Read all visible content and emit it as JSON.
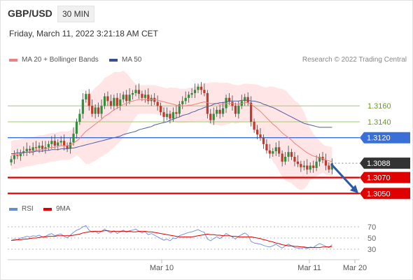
{
  "header": {
    "symbol": "GBP/USD",
    "timeframe": "30 MIN",
    "datetime": "Friday, March 11, 2022 3:21:18 AM CET"
  },
  "legend": {
    "ma20_bb": "MA 20 + Bollinger Bands",
    "ma50": "MA 50",
    "credit": "Research © 2022 Trading Central",
    "rsi": "RSI",
    "ma9": "9MA"
  },
  "colors": {
    "ma20": "#f08080",
    "band": "#ffe0e0",
    "ma50": "#4f5f9f",
    "bull": "#2f8f3a",
    "bear": "#c0392b",
    "green_level": "#9ccf6a",
    "blue_level": "#3a6fd8",
    "red_level": "#e00000",
    "current": "#333333",
    "arrow": "#2d5aa8",
    "rsi": "#6b8bd6",
    "rsi_ma": "#e00000"
  },
  "chart_data": [
    {
      "type": "candlestick",
      "title": "",
      "x_ticks": [
        "Mar 10",
        "Mar 11",
        "Mar 20"
      ],
      "ylim": [
        1.3038,
        1.3205
      ],
      "levels": [
        {
          "label": "1.3160",
          "value": 1.316,
          "kind": "resistance"
        },
        {
          "label": "1.3140",
          "value": 1.314,
          "kind": "resistance"
        },
        {
          "label": "1.3120",
          "value": 1.312,
          "kind": "pivot"
        },
        {
          "label": "1.3088",
          "value": 1.3088,
          "kind": "current"
        },
        {
          "label": "1.3070",
          "value": 1.307,
          "kind": "support"
        },
        {
          "label": "1.3050",
          "value": 1.305,
          "kind": "support"
        }
      ],
      "close": [
        1.3093,
        1.3098,
        1.3097,
        1.3101,
        1.3103,
        1.3106,
        1.3104,
        1.3108,
        1.3107,
        1.311,
        1.3106,
        1.3108,
        1.3112,
        1.3116,
        1.311,
        1.3114,
        1.3116,
        1.311,
        1.3106,
        1.3114,
        1.3125,
        1.314,
        1.315,
        1.3168,
        1.3175,
        1.316,
        1.315,
        1.3158,
        1.315,
        1.316,
        1.3172,
        1.3166,
        1.316,
        1.317,
        1.316,
        1.3168,
        1.3174,
        1.3166,
        1.3174,
        1.3176,
        1.318,
        1.3175,
        1.317,
        1.3174,
        1.3166,
        1.317,
        1.3165,
        1.316,
        1.3152,
        1.3146,
        1.315,
        1.3144,
        1.3152,
        1.315,
        1.3162,
        1.3166,
        1.317,
        1.3174,
        1.3176,
        1.318,
        1.3184,
        1.318,
        1.3176,
        1.315,
        1.3142,
        1.315,
        1.3155,
        1.315,
        1.3157,
        1.317,
        1.3165,
        1.316,
        1.315,
        1.316,
        1.3166,
        1.3171,
        1.3164,
        1.314,
        1.313,
        1.3124,
        1.312,
        1.3112,
        1.3104,
        1.31,
        1.3103,
        1.3108,
        1.31,
        1.309,
        1.3096,
        1.3102,
        1.3096,
        1.309,
        1.3087,
        1.3083,
        1.3085,
        1.308,
        1.3085,
        1.3082,
        1.309,
        1.3096,
        1.3092,
        1.3085,
        1.308,
        1.3088
      ],
      "series": [
        {
          "name": "MA 20",
          "values": [
            1.3098,
            1.3099,
            1.3099,
            1.31,
            1.3101,
            1.3102,
            1.3102,
            1.3103,
            1.3104,
            1.3105,
            1.3105,
            1.3106,
            1.3107,
            1.3108,
            1.3108,
            1.3109,
            1.311,
            1.311,
            1.311,
            1.3111,
            1.3113,
            1.3116,
            1.3119,
            1.3124,
            1.3128,
            1.3131,
            1.3134,
            1.3137,
            1.314,
            1.3143,
            1.3147,
            1.3149,
            1.3152,
            1.3155,
            1.3157,
            1.3159,
            1.3162,
            1.3163,
            1.3165,
            1.3166,
            1.3167,
            1.3168,
            1.3168,
            1.3168,
            1.3168,
            1.3168,
            1.3168,
            1.3167,
            1.3166,
            1.3165,
            1.3164,
            1.3163,
            1.3162,
            1.3161,
            1.316,
            1.316,
            1.316,
            1.3161,
            1.3161,
            1.3162,
            1.3163,
            1.3164,
            1.3165,
            1.3164,
            1.3163,
            1.3163,
            1.3163,
            1.3162,
            1.3162,
            1.3163,
            1.3163,
            1.3163,
            1.3162,
            1.3162,
            1.3163,
            1.3164,
            1.3164,
            1.3162,
            1.3159,
            1.3156,
            1.3153,
            1.3149,
            1.3145,
            1.3141,
            1.3137,
            1.3134,
            1.313,
            1.3126,
            1.3123,
            1.312,
            1.3117,
            1.3113,
            1.311,
            1.3107,
            1.3104,
            1.3101,
            1.3099,
            1.3097,
            1.3096,
            1.3095,
            1.3094,
            1.3092,
            1.3091,
            1.309
          ]
        },
        {
          "name": "MA 50",
          "values": [
            1.31,
            1.31,
            1.3101,
            1.3101,
            1.3101,
            1.3102,
            1.3102,
            1.3102,
            1.3103,
            1.3103,
            1.3103,
            1.3104,
            1.3104,
            1.3105,
            1.3105,
            1.3105,
            1.3106,
            1.3106,
            1.3106,
            1.3107,
            1.3107,
            1.3108,
            1.3109,
            1.311,
            1.3111,
            1.3112,
            1.3113,
            1.3114,
            1.3115,
            1.3116,
            1.3117,
            1.3118,
            1.3119,
            1.312,
            1.3121,
            1.3122,
            1.3124,
            1.3125,
            1.3126,
            1.3127,
            1.3128,
            1.313,
            1.3131,
            1.3132,
            1.3133,
            1.3134,
            1.3136,
            1.3137,
            1.3138,
            1.3139,
            1.314,
            1.3142,
            1.3143,
            1.3145,
            1.3146,
            1.3148,
            1.3149,
            1.315,
            1.3152,
            1.3153,
            1.3155,
            1.3156,
            1.3158,
            1.3159,
            1.316,
            1.3162,
            1.3163,
            1.3164,
            1.3164,
            1.3165,
            1.3166,
            1.3166,
            1.3166,
            1.3166,
            1.3167,
            1.3167,
            1.3167,
            1.3166,
            1.3166,
            1.3165,
            1.3164,
            1.3162,
            1.3161,
            1.3159,
            1.3158,
            1.3156,
            1.3154,
            1.3152,
            1.315,
            1.3148,
            1.3146,
            1.3144,
            1.3142,
            1.314,
            1.3138,
            1.3137,
            1.3136,
            1.3135,
            1.3134,
            1.3133,
            1.3133,
            1.3133,
            1.3133,
            1.3133
          ]
        }
      ]
    },
    {
      "type": "line",
      "title": "RSI",
      "ylim": [
        25,
        75
      ],
      "y_ticks": [
        70,
        50,
        30
      ],
      "series": [
        {
          "name": "RSI",
          "values": [
            45,
            48,
            47,
            50,
            51,
            53,
            52,
            54,
            53,
            55,
            52,
            53,
            56,
            58,
            54,
            56,
            57,
            53,
            50,
            55,
            60,
            64,
            66,
            70,
            72,
            64,
            60,
            62,
            58,
            62,
            66,
            62,
            59,
            63,
            58,
            61,
            64,
            60,
            63,
            64,
            66,
            62,
            59,
            61,
            56,
            58,
            55,
            52,
            49,
            46,
            48,
            45,
            50,
            49,
            54,
            56,
            58,
            60,
            61,
            63,
            65,
            62,
            60,
            48,
            45,
            49,
            52,
            49,
            53,
            58,
            55,
            52,
            48,
            53,
            56,
            59,
            55,
            44,
            41,
            40,
            39,
            37,
            35,
            34,
            36,
            39,
            35,
            32,
            36,
            39,
            36,
            33,
            32,
            31,
            33,
            31,
            34,
            33,
            37,
            40,
            38,
            35,
            33,
            38
          ]
        },
        {
          "name": "9MA",
          "values": [
            46,
            46,
            47,
            47,
            48,
            48,
            49,
            50,
            50,
            51,
            52,
            52,
            53,
            53,
            53,
            54,
            54,
            54,
            54,
            54,
            55,
            56,
            57,
            59,
            60,
            61,
            62,
            62,
            62,
            62,
            63,
            63,
            62,
            62,
            62,
            62,
            62,
            62,
            62,
            61,
            61,
            62,
            62,
            62,
            61,
            61,
            60,
            59,
            58,
            57,
            56,
            55,
            54,
            53,
            52,
            52,
            52,
            52,
            52,
            53,
            54,
            55,
            56,
            57,
            56,
            56,
            55,
            55,
            54,
            54,
            54,
            53,
            53,
            52,
            52,
            52,
            52,
            52,
            51,
            50,
            49,
            47,
            46,
            44,
            43,
            41,
            40,
            38,
            37,
            36,
            36,
            35,
            35,
            34,
            34,
            33,
            33,
            33,
            33,
            33,
            34,
            34,
            34,
            35
          ]
        }
      ]
    }
  ]
}
